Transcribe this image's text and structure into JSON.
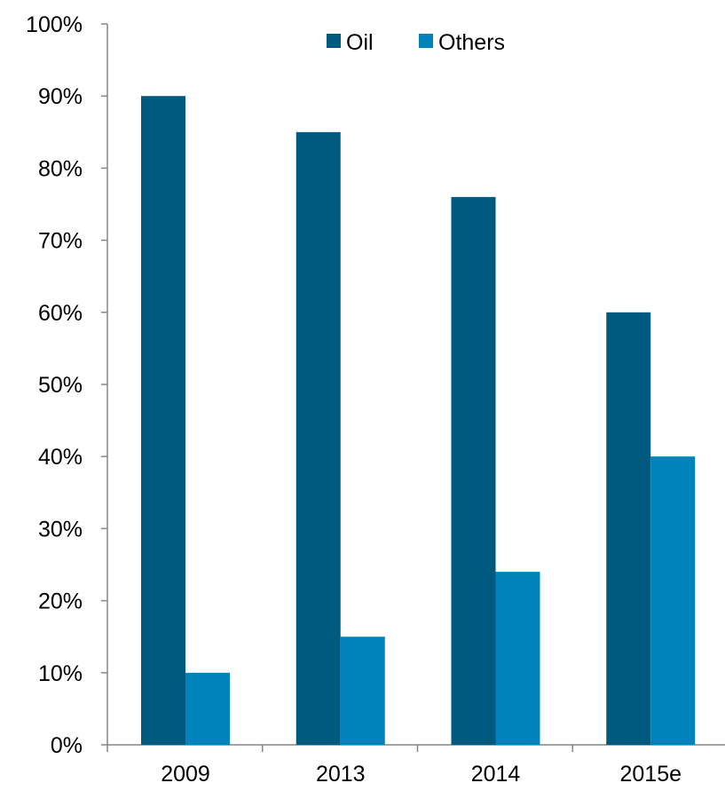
{
  "chart_data": {
    "type": "bar",
    "categories": [
      "2009",
      "2013",
      "2014",
      "2015e"
    ],
    "series": [
      {
        "name": "Oil",
        "values": [
          90,
          85,
          76,
          60
        ],
        "color": "#005a80"
      },
      {
        "name": "Others",
        "values": [
          10,
          15,
          24,
          40
        ],
        "color": "#0083bb"
      }
    ],
    "ylim": [
      0,
      100
    ],
    "y_ticks": [
      {
        "value": 0,
        "label": "0%"
      },
      {
        "value": 10,
        "label": "10%"
      },
      {
        "value": 20,
        "label": "20%"
      },
      {
        "value": 30,
        "label": "30%"
      },
      {
        "value": 40,
        "label": "40%"
      },
      {
        "value": 50,
        "label": "50%"
      },
      {
        "value": 60,
        "label": "60%"
      },
      {
        "value": 70,
        "label": "70%"
      },
      {
        "value": 80,
        "label": "80%"
      },
      {
        "value": 90,
        "label": "90%"
      },
      {
        "value": 100,
        "label": "100%"
      }
    ],
    "grid": false,
    "legend_position": "top",
    "axis_color": "#868686"
  }
}
